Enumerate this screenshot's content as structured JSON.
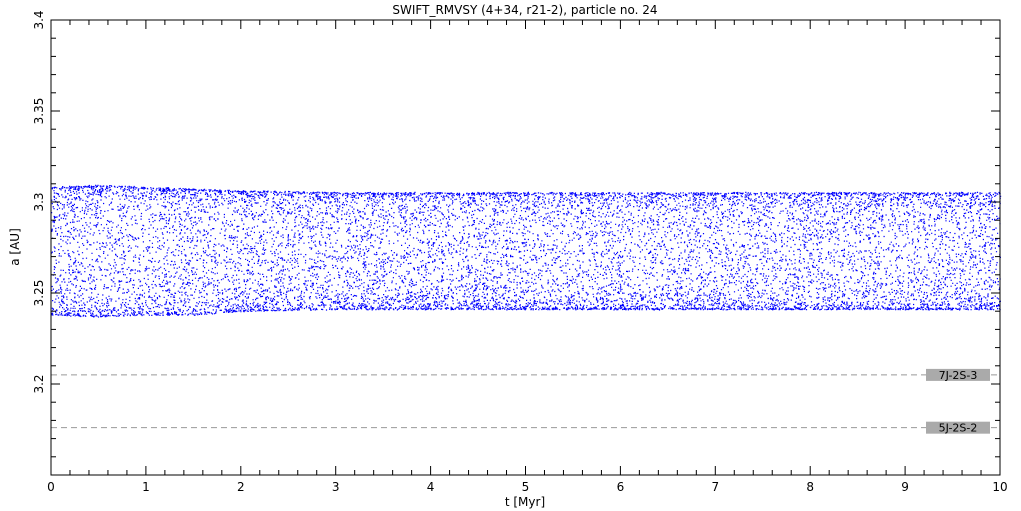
{
  "chart_data": {
    "type": "scatter",
    "title": "SWIFT_RMVSY (4+34, r21-2), particle no. 24",
    "xlabel": "t [Myr]",
    "ylabel": "a [AU]",
    "xlim": [
      0,
      10
    ],
    "ylim": [
      3.15,
      3.4
    ],
    "x_ticks": [
      0,
      1,
      2,
      3,
      4,
      5,
      6,
      7,
      8,
      9,
      10
    ],
    "y_ticks": [
      3.2,
      3.25,
      3.3,
      3.35,
      3.4
    ],
    "x_tick_labels": [
      "0",
      "1",
      "2",
      "3",
      "4",
      "5",
      "6",
      "7",
      "8",
      "9",
      "10"
    ],
    "y_tick_labels": [
      "3.2",
      "3.25",
      "3.3",
      "3.35",
      "3.4"
    ],
    "point_color": "#0000ff",
    "series": [
      {
        "t_range": [
          0,
          10
        ],
        "a_envelope": [
          {
            "t": 0.0,
            "a_min": 3.238,
            "a_max": 3.308
          },
          {
            "t": 0.5,
            "a_min": 3.237,
            "a_max": 3.309
          },
          {
            "t": 1.0,
            "a_min": 3.238,
            "a_max": 3.308
          },
          {
            "t": 1.5,
            "a_min": 3.238,
            "a_max": 3.307
          },
          {
            "t": 2.0,
            "a_min": 3.24,
            "a_max": 3.306
          },
          {
            "t": 3.0,
            "a_min": 3.241,
            "a_max": 3.305
          },
          {
            "t": 4.0,
            "a_min": 3.241,
            "a_max": 3.305
          },
          {
            "t": 5.0,
            "a_min": 3.241,
            "a_max": 3.305
          },
          {
            "t": 6.0,
            "a_min": 3.241,
            "a_max": 3.305
          },
          {
            "t": 7.0,
            "a_min": 3.241,
            "a_max": 3.305
          },
          {
            "t": 8.0,
            "a_min": 3.241,
            "a_max": 3.305
          },
          {
            "t": 9.0,
            "a_min": 3.241,
            "a_max": 3.305
          },
          {
            "t": 10.0,
            "a_min": 3.241,
            "a_max": 3.305
          }
        ]
      }
    ],
    "resonances": [
      {
        "label": "7J-2S-3",
        "a": 3.205,
        "color": "#999999",
        "box": "#aaaaaa"
      },
      {
        "label": "5J-2S-2",
        "a": 3.176,
        "color": "#999999",
        "box": "#aaaaaa"
      }
    ],
    "grid": false
  }
}
